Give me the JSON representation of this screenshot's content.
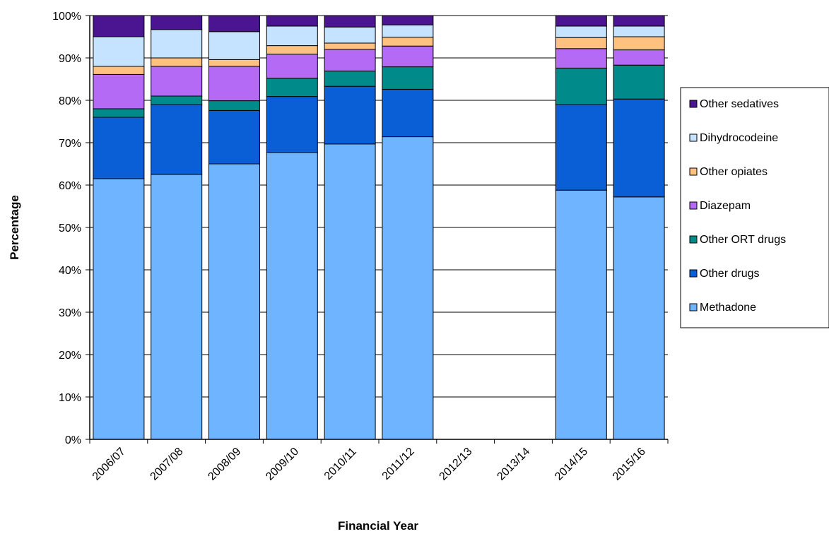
{
  "chart_data": {
    "type": "bar",
    "stacked": true,
    "percent": true,
    "title": "",
    "xlabel": "Financial Year",
    "ylabel": "Percentage",
    "ylim": [
      0,
      100
    ],
    "y_ticks": [
      "0%",
      "10%",
      "20%",
      "30%",
      "40%",
      "50%",
      "60%",
      "70%",
      "80%",
      "90%",
      "100%"
    ],
    "categories": [
      "2006/07",
      "2007/08",
      "2008/09",
      "2009/10",
      "2010/11",
      "2011/12",
      "2012/13",
      "2013/14",
      "2014/15",
      "2015/16"
    ],
    "grid": "horizontal major gridlines",
    "legend_position": "right",
    "series": [
      {
        "name": "Methadone",
        "color": "#6EB4FF",
        "values": [
          61.5,
          62.5,
          65,
          67.7,
          69.7,
          71.4,
          null,
          null,
          58.8,
          57.2
        ]
      },
      {
        "name": "Other drugs",
        "color": "#0A5FD6",
        "values": [
          14.5,
          16.5,
          12.6,
          13.2,
          13.6,
          11.2,
          null,
          null,
          20.2,
          23.1
        ]
      },
      {
        "name": "Other ORT  drugs",
        "color": "#008B8B",
        "values": [
          2,
          2,
          2.3,
          4.3,
          3.6,
          5.3,
          null,
          null,
          8.6,
          8
        ]
      },
      {
        "name": "Diazepam",
        "color": "#B56AF5",
        "values": [
          8.1,
          7,
          8.1,
          5.7,
          5.1,
          4.9,
          null,
          null,
          4.6,
          3.6
        ]
      },
      {
        "name": "Other opiates",
        "color": "#FFC180",
        "values": [
          1.9,
          2,
          1.6,
          2,
          1.5,
          2.1,
          null,
          null,
          2.6,
          3.1
        ]
      },
      {
        "name": "Dihydrocodeine",
        "color": "#C5E3FF",
        "values": [
          7,
          6.7,
          6.6,
          4.6,
          3.8,
          2.9,
          null,
          null,
          2.7,
          2.5
        ]
      },
      {
        "name": "Other sedatives",
        "color": "#4B1591",
        "values": [
          5,
          3.3,
          3.8,
          2.5,
          2.7,
          2.2,
          null,
          null,
          2.5,
          2.5
        ]
      }
    ]
  }
}
